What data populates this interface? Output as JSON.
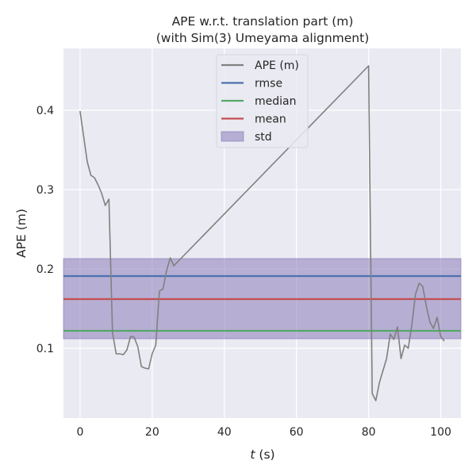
{
  "chart_data": {
    "type": "line",
    "title": "APE w.r.t. translation part (m)",
    "subtitle": "(with Sim(3) Umeyama alignment)",
    "xlabel_italic": "t",
    "xlabel_unit": " (s)",
    "ylabel": "APE (m)",
    "xlim": [
      -4.6,
      105.6
    ],
    "ylim": [
      0.012,
      0.478
    ],
    "xticks": [
      0,
      20,
      40,
      60,
      80,
      100
    ],
    "yticks": [
      0.1,
      0.2,
      0.3,
      0.4
    ],
    "ytick_labels": [
      "0.1",
      "0.2",
      "0.3",
      "0.4"
    ],
    "grid": true,
    "legend_position": "top-center",
    "series": [
      {
        "name": "APE (m)",
        "color": "#808080",
        "x": [
          0,
          2,
          3,
          4,
          5,
          6,
          7,
          8,
          9,
          10,
          11,
          12,
          13,
          14,
          15,
          16,
          17,
          18,
          19,
          20,
          21,
          22,
          23,
          24,
          25,
          26,
          80,
          81,
          82,
          83,
          84,
          85,
          86,
          87,
          88,
          89,
          90,
          91,
          92,
          93,
          94,
          95,
          96,
          97,
          98,
          99,
          100,
          101
        ],
        "y": [
          0.399,
          0.335,
          0.318,
          0.315,
          0.306,
          0.295,
          0.28,
          0.288,
          0.12,
          0.093,
          0.093,
          0.092,
          0.098,
          0.115,
          0.114,
          0.102,
          0.077,
          0.075,
          0.074,
          0.093,
          0.104,
          0.172,
          0.175,
          0.198,
          0.214,
          0.204,
          0.456,
          0.043,
          0.034,
          0.057,
          0.072,
          0.087,
          0.118,
          0.111,
          0.127,
          0.087,
          0.104,
          0.1,
          0.13,
          0.168,
          0.182,
          0.178,
          0.153,
          0.133,
          0.125,
          0.139,
          0.115,
          0.109
        ]
      }
    ],
    "stats": {
      "rmse": 0.191,
      "median": 0.122,
      "mean": 0.162,
      "std_band": [
        0.112,
        0.213
      ]
    },
    "legend": [
      {
        "label": "APE (m)",
        "kind": "line",
        "color": "#808080"
      },
      {
        "label": "rmse",
        "kind": "line",
        "color": "#4c72b0"
      },
      {
        "label": "median",
        "kind": "line",
        "color": "#55a868"
      },
      {
        "label": "mean",
        "kind": "line",
        "color": "#c44e52"
      },
      {
        "label": "std",
        "kind": "patch",
        "color": "#8172b3"
      }
    ],
    "colors": {
      "background": "#eaeaf2",
      "grid": "#ffffff",
      "rmse": "#4c72b0",
      "median": "#55a868",
      "mean": "#c44e52",
      "std": "#8172b3"
    }
  }
}
